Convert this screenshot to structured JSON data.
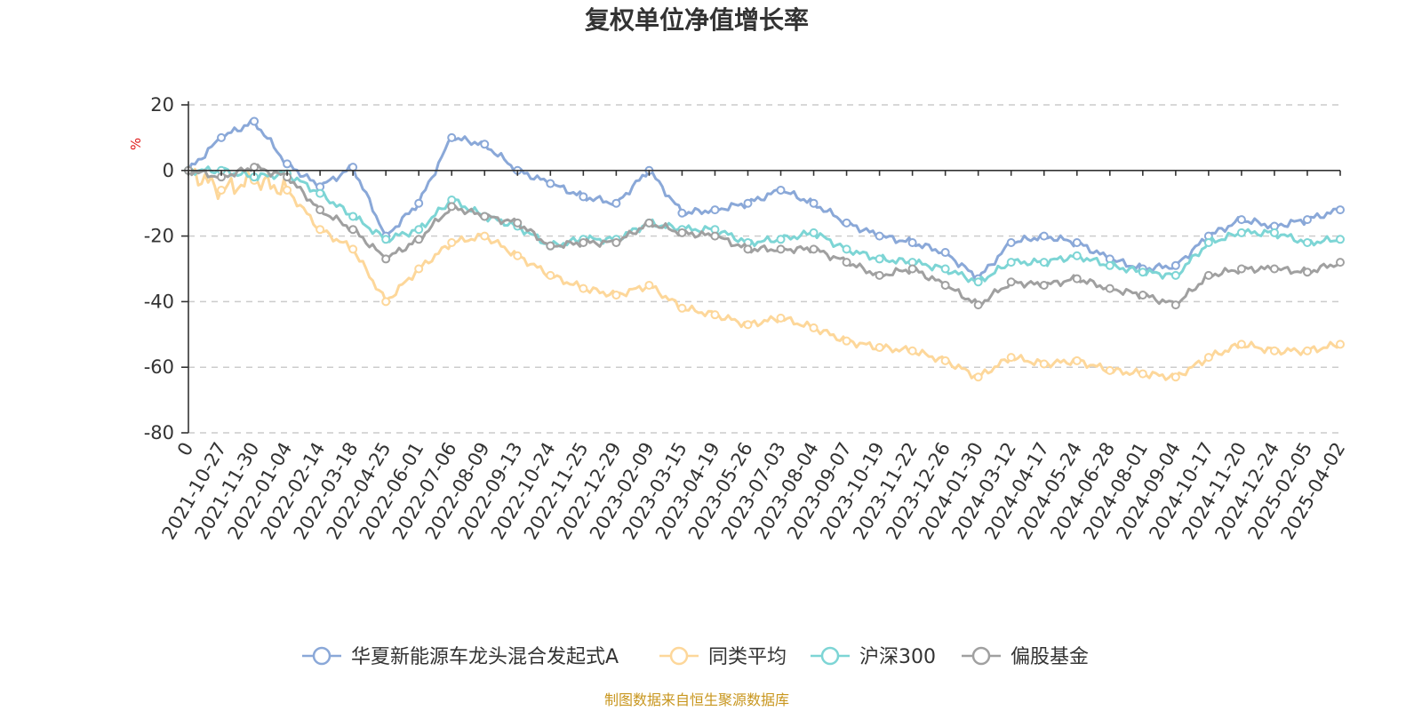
{
  "source_note": "制图数据来自恒生聚源数据库",
  "chart_data": {
    "type": "line",
    "title": "复权单位净值增长率",
    "ylabel": "%",
    "xlabel": "",
    "ylim": [
      -80,
      20
    ],
    "yticks": [
      20,
      0,
      -20,
      -40,
      -60,
      -80
    ],
    "grid": true,
    "legend_position": "bottom",
    "categories": [
      "0",
      "2021-10-27",
      "2021-11-30",
      "2022-01-04",
      "2022-02-14",
      "2022-03-18",
      "2022-04-25",
      "2022-06-01",
      "2022-07-06",
      "2022-08-09",
      "2022-09-13",
      "2022-10-24",
      "2022-11-25",
      "2022-12-29",
      "2023-02-09",
      "2023-03-15",
      "2023-04-19",
      "2023-05-26",
      "2023-07-03",
      "2023-08-04",
      "2023-09-07",
      "2023-10-19",
      "2023-11-22",
      "2023-12-26",
      "2024-01-30",
      "2024-03-12",
      "2024-04-17",
      "2024-05-24",
      "2024-06-28",
      "2024-08-01",
      "2024-09-04",
      "2024-10-17",
      "2024-11-20",
      "2024-12-24",
      "2025-02-05",
      "2025-04-02"
    ],
    "series": [
      {
        "name": "华夏新能源车龙头混合发起式A",
        "color": "#8aa8d8",
        "values": [
          0,
          10,
          15,
          2,
          -5,
          1,
          -20,
          -10,
          10,
          8,
          0,
          -4,
          -8,
          -10,
          0,
          -13,
          -12,
          -10,
          -6,
          -10,
          -16,
          -20,
          -22,
          -25,
          -33,
          -22,
          -20,
          -22,
          -27,
          -30,
          -29,
          -20,
          -15,
          -17,
          -15,
          -12
        ]
      },
      {
        "name": "同类平均",
        "color": "#fdd79a",
        "values": [
          0,
          -6,
          -3,
          -6,
          -18,
          -24,
          -40,
          -30,
          -22,
          -20,
          -26,
          -32,
          -36,
          -38,
          -35,
          -42,
          -44,
          -47,
          -45,
          -48,
          -52,
          -54,
          -55,
          -58,
          -63,
          -57,
          -59,
          -58,
          -61,
          -62,
          -63,
          -57,
          -53,
          -55,
          -55,
          -53
        ]
      },
      {
        "name": "沪深300",
        "color": "#7dd5d5",
        "values": [
          0,
          0,
          -2,
          -1,
          -7,
          -14,
          -21,
          -18,
          -9,
          -14,
          -17,
          -23,
          -21,
          -21,
          -16,
          -18,
          -18,
          -22,
          -21,
          -19,
          -24,
          -27,
          -28,
          -30,
          -34,
          -28,
          -28,
          -26,
          -29,
          -31,
          -32,
          -22,
          -19,
          -19,
          -22,
          -21
        ]
      },
      {
        "name": "偏股基金",
        "color": "#a0a0a0",
        "values": [
          0,
          -2,
          1,
          -2,
          -12,
          -18,
          -27,
          -21,
          -11,
          -14,
          -16,
          -23,
          -22,
          -22,
          -16,
          -19,
          -20,
          -24,
          -24,
          -24,
          -28,
          -32,
          -30,
          -35,
          -41,
          -34,
          -35,
          -33,
          -36,
          -38,
          -41,
          -32,
          -30,
          -30,
          -31,
          -28
        ]
      }
    ]
  }
}
